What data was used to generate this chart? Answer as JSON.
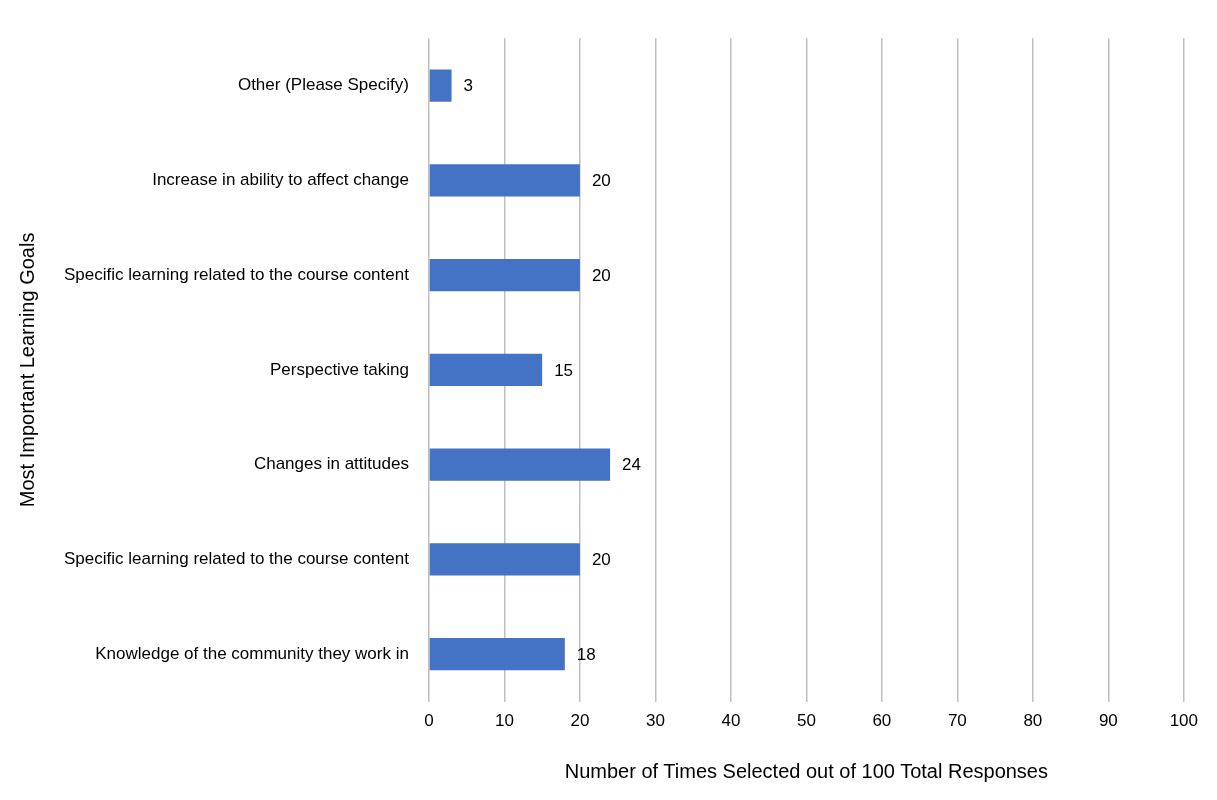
{
  "chart_data": {
    "type": "bar",
    "orientation": "horizontal",
    "xlabel": "Number of Times Selected out of 100 Total Responses",
    "ylabel": "Most Important Learning Goals",
    "categories": [
      "Other (Please Specify)",
      "Increase in ability to affect change",
      "Specific learning related to the course content",
      "Perspective taking",
      "Changes in attitudes",
      "Specific learning related to the course content",
      "Knowledge of the community they work in"
    ],
    "values": [
      3,
      20,
      20,
      15,
      24,
      20,
      18
    ],
    "color": "#4472c4",
    "xlim": [
      0,
      100
    ],
    "xticks": [
      0,
      10,
      20,
      30,
      40,
      50,
      60,
      70,
      80,
      90,
      100
    ],
    "grid": "x",
    "data_labels": true,
    "legend": false
  }
}
